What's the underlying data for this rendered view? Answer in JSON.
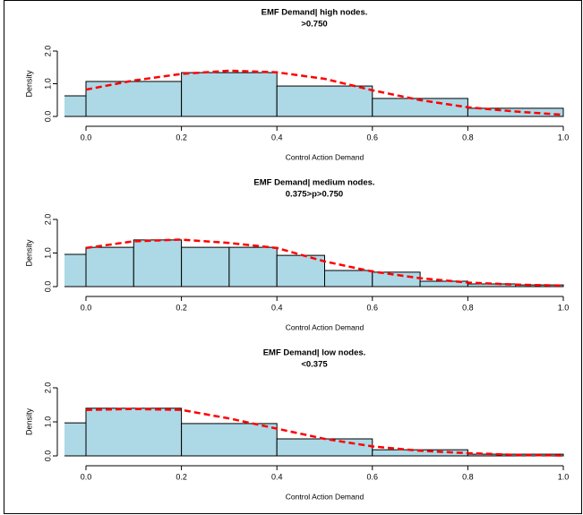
{
  "chart_data": [
    {
      "type": "histogram",
      "title": "EMF Demand| high nodes.",
      "subtitle": ">0.750",
      "x_label": "Control Action Demand",
      "y_label": "Density",
      "bins": [
        -0.2,
        0,
        0.2,
        0.4,
        0.6,
        0.8,
        1.0
      ],
      "values": [
        0.63,
        1.07,
        1.34,
        0.93,
        0.55,
        0.25
      ],
      "color": "#add8e6",
      "curve": {
        "color": "#ff0000",
        "x": [
          0,
          0.1,
          0.2,
          0.3,
          0.4,
          0.5,
          0.6,
          0.7,
          0.8,
          0.9,
          1.0
        ],
        "y": [
          0.82,
          1.1,
          1.3,
          1.4,
          1.35,
          1.15,
          0.8,
          0.5,
          0.28,
          0.15,
          0.05
        ]
      },
      "xlim": [
        -0.045,
        1.0
      ],
      "ylim": [
        0,
        2
      ],
      "xticks": [
        {
          "value": 0,
          "label": "0.0"
        },
        {
          "value": 0.2,
          "label": "0.2"
        },
        {
          "value": 0.4,
          "label": "0.4"
        },
        {
          "value": 0.6,
          "label": "0.6"
        },
        {
          "value": 0.8,
          "label": "0.8"
        },
        {
          "value": 1,
          "label": "1.0"
        }
      ],
      "yticks": [
        {
          "value": 0,
          "label": "0.0"
        },
        {
          "value": 1,
          "label": "1.0"
        },
        {
          "value": 2,
          "label": "2.0"
        }
      ]
    },
    {
      "type": "histogram",
      "title": "EMF Demand| medium nodes.",
      "subtitle": "0.375>p>0.750",
      "x_label": "Control Action Demand",
      "y_label": "Density",
      "bins": [
        -0.1,
        0,
        0.1,
        0.2,
        0.3,
        0.4,
        0.5,
        0.6,
        0.7,
        0.8,
        0.9,
        1.0
      ],
      "values": [
        0.96,
        1.17,
        1.39,
        1.17,
        1.17,
        0.93,
        0.48,
        0.43,
        0.16,
        0.08,
        0.05
      ],
      "color": "#add8e6",
      "curve": {
        "color": "#ff0000",
        "x": [
          0,
          0.1,
          0.2,
          0.3,
          0.4,
          0.5,
          0.6,
          0.7,
          0.8,
          0.9,
          1.0
        ],
        "y": [
          1.15,
          1.35,
          1.4,
          1.3,
          1.15,
          0.75,
          0.45,
          0.25,
          0.12,
          0.06,
          0.03
        ]
      },
      "xlim": [
        -0.045,
        1.0
      ],
      "ylim": [
        0,
        2
      ],
      "xticks": [
        {
          "value": 0,
          "label": "0.0"
        },
        {
          "value": 0.2,
          "label": "0.2"
        },
        {
          "value": 0.4,
          "label": "0.4"
        },
        {
          "value": 0.6,
          "label": "0.6"
        },
        {
          "value": 0.8,
          "label": "0.8"
        },
        {
          "value": 1,
          "label": "1.0"
        }
      ],
      "yticks": [
        {
          "value": 0,
          "label": "0.0"
        },
        {
          "value": 1,
          "label": "1.0"
        },
        {
          "value": 2,
          "label": "2.0"
        }
      ]
    },
    {
      "type": "histogram",
      "title": "EMF Demand| low nodes.",
      "subtitle": "<0.375",
      "x_label": "Control Action Demand",
      "y_label": "Density",
      "bins": [
        -0.2,
        0,
        0.2,
        0.4,
        0.6,
        0.8,
        1.0
      ],
      "values": [
        0.97,
        1.4,
        0.95,
        0.5,
        0.18,
        0.05
      ],
      "color": "#add8e6",
      "curve": {
        "color": "#ff0000",
        "x": [
          0,
          0.1,
          0.2,
          0.3,
          0.4,
          0.5,
          0.6,
          0.7,
          0.8,
          0.9,
          1.0
        ],
        "y": [
          1.35,
          1.38,
          1.35,
          1.1,
          0.8,
          0.5,
          0.28,
          0.15,
          0.08,
          0.03,
          0.01
        ]
      },
      "xlim": [
        -0.045,
        1.0
      ],
      "ylim": [
        0,
        2
      ],
      "xticks": [
        {
          "value": 0,
          "label": "0.0"
        },
        {
          "value": 0.2,
          "label": "0.2"
        },
        {
          "value": 0.4,
          "label": "0.4"
        },
        {
          "value": 0.6,
          "label": "0.6"
        },
        {
          "value": 0.8,
          "label": "0.8"
        },
        {
          "value": 1,
          "label": "1.0"
        }
      ],
      "yticks": [
        {
          "value": 0,
          "label": "0.0"
        },
        {
          "value": 1,
          "label": "1.0"
        },
        {
          "value": 2,
          "label": "2.0"
        }
      ]
    }
  ]
}
